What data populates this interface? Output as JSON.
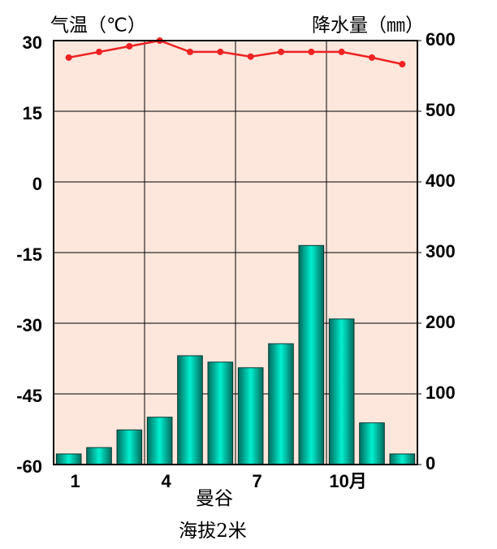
{
  "chart_data": {
    "type": "combo",
    "ylabel": "气温（℃）",
    "y2label": "降水量（㎜）",
    "categories": [
      "1",
      null,
      null,
      "4",
      null,
      null,
      "7",
      null,
      null,
      "10月",
      null,
      null
    ],
    "series": [
      {
        "type": "bar",
        "axis": "y2",
        "color": "#00f0d0",
        "values": [
          15,
          24,
          49,
          67,
          154,
          145,
          137,
          171,
          310,
          206,
          59,
          15
        ]
      },
      {
        "type": "line",
        "axis": "y",
        "color": "#ee2222",
        "values": [
          26.4,
          27.6,
          28.8,
          30,
          27.6,
          27.6,
          26.6,
          27.6,
          27.6,
          27.6,
          26.4,
          25
        ]
      }
    ],
    "ylim": [
      -60,
      30
    ],
    "yticks": [
      -60,
      -45,
      -30,
      -15,
      0,
      15,
      30
    ],
    "y2lim": [
      0,
      600
    ],
    "y2ticks": [
      0,
      100,
      200,
      300,
      400,
      500,
      600
    ],
    "grid": true,
    "annotations": [
      "曼谷",
      "海拔2米"
    ]
  }
}
